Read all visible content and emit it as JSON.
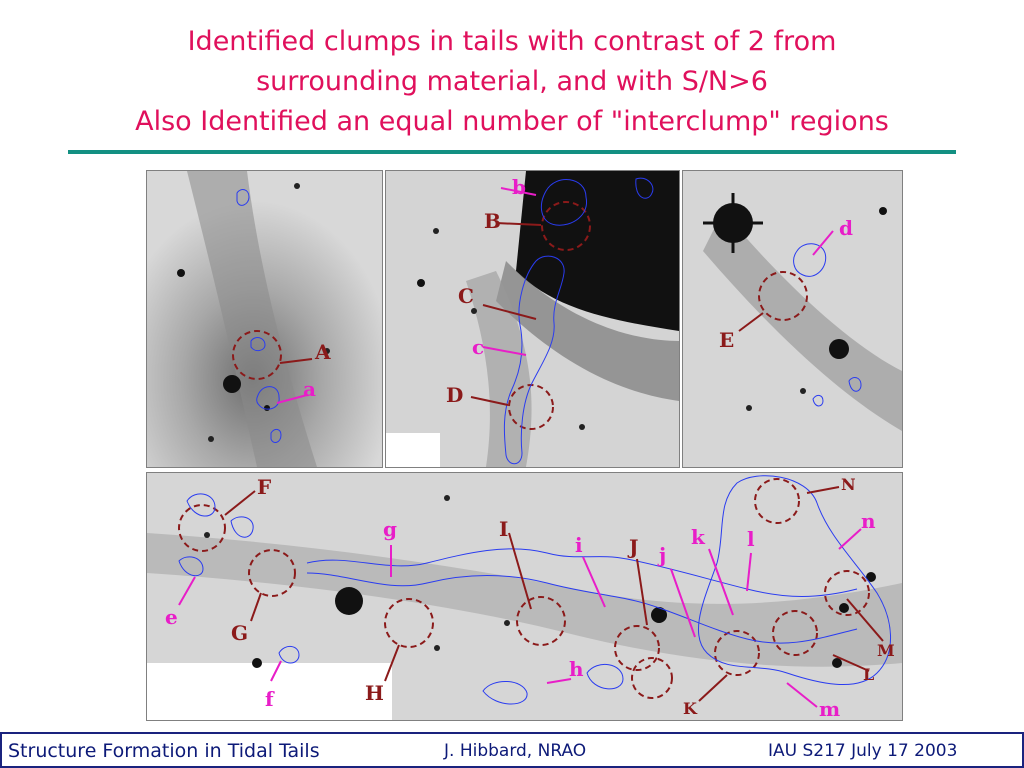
{
  "title": {
    "line1": "Identified clumps in tails with contrast of 2 from",
    "line2": "surrounding material, and with S/N>6",
    "line3": "Also Identified an equal number of \"interclump\" regions"
  },
  "colors": {
    "title": "#e0105c",
    "rule": "#139082",
    "clump_label": "#8b1a1a",
    "interclump_label": "#e81ec8",
    "contour": "#2a3cf0",
    "footer_text": "#0d1a78"
  },
  "panels": {
    "p1": {
      "labels": [
        {
          "id": "A",
          "text": "A",
          "kind": "up"
        },
        {
          "id": "a",
          "text": "a",
          "kind": "low"
        }
      ]
    },
    "p2": {
      "labels": [
        {
          "id": "b",
          "text": "b",
          "kind": "low"
        },
        {
          "id": "B",
          "text": "B",
          "kind": "up"
        },
        {
          "id": "C",
          "text": "C",
          "kind": "up"
        },
        {
          "id": "c",
          "text": "c",
          "kind": "low"
        },
        {
          "id": "D",
          "text": "D",
          "kind": "up"
        }
      ]
    },
    "p3": {
      "labels": [
        {
          "id": "d",
          "text": "d",
          "kind": "low"
        },
        {
          "id": "E",
          "text": "E",
          "kind": "up"
        }
      ]
    },
    "p4": {
      "labels": [
        {
          "id": "F",
          "text": "F",
          "kind": "up"
        },
        {
          "id": "e",
          "text": "e",
          "kind": "low"
        },
        {
          "id": "G",
          "text": "G",
          "kind": "up"
        },
        {
          "id": "f",
          "text": "f",
          "kind": "low"
        },
        {
          "id": "g",
          "text": "g",
          "kind": "low"
        },
        {
          "id": "H",
          "text": "H",
          "kind": "up"
        },
        {
          "id": "I",
          "text": "I",
          "kind": "up"
        },
        {
          "id": "i",
          "text": "i",
          "kind": "low"
        },
        {
          "id": "h",
          "text": "h",
          "kind": "low"
        },
        {
          "id": "J",
          "text": "J",
          "kind": "up"
        },
        {
          "id": "j",
          "text": "j",
          "kind": "low"
        },
        {
          "id": "k",
          "text": "k",
          "kind": "low"
        },
        {
          "id": "l",
          "text": "l",
          "kind": "low"
        },
        {
          "id": "K",
          "text": "K",
          "kind": "up"
        },
        {
          "id": "N",
          "text": "N",
          "kind": "up"
        },
        {
          "id": "n",
          "text": "n",
          "kind": "low"
        },
        {
          "id": "M",
          "text": "M",
          "kind": "up"
        },
        {
          "id": "L",
          "text": "L",
          "kind": "up"
        },
        {
          "id": "m",
          "text": "m",
          "kind": "low"
        }
      ]
    }
  },
  "footer": {
    "left": "Structure Formation in Tidal Tails",
    "center": "J. Hibbard, NRAO",
    "right": "IAU S217  July 17 2003"
  }
}
